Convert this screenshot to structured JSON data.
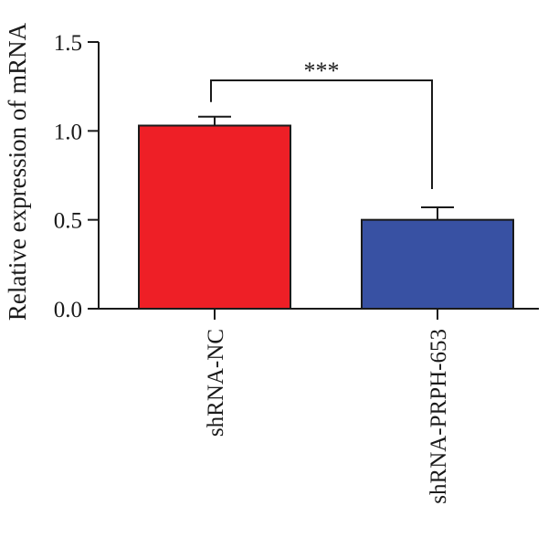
{
  "chart_data": {
    "type": "bar",
    "title": "",
    "xlabel": "",
    "ylabel": "Relative expression of mRNA",
    "ylim": [
      0,
      1.5
    ],
    "y_ticks": [
      0.0,
      0.5,
      1.0,
      1.5
    ],
    "y_tick_labels": [
      "0.0",
      "0.5",
      "1.0",
      "1.5"
    ],
    "categories": [
      "shRNA-NC",
      "shRNA-PRPH-653"
    ],
    "values": [
      1.03,
      0.5
    ],
    "error_upper": [
      0.05,
      0.07
    ],
    "colors": [
      "#ee1f26",
      "#3851a3"
    ],
    "grid": false,
    "legend": false,
    "significance": {
      "from": "shRNA-NC",
      "to": "shRNA-PRPH-653",
      "label": "***"
    }
  }
}
